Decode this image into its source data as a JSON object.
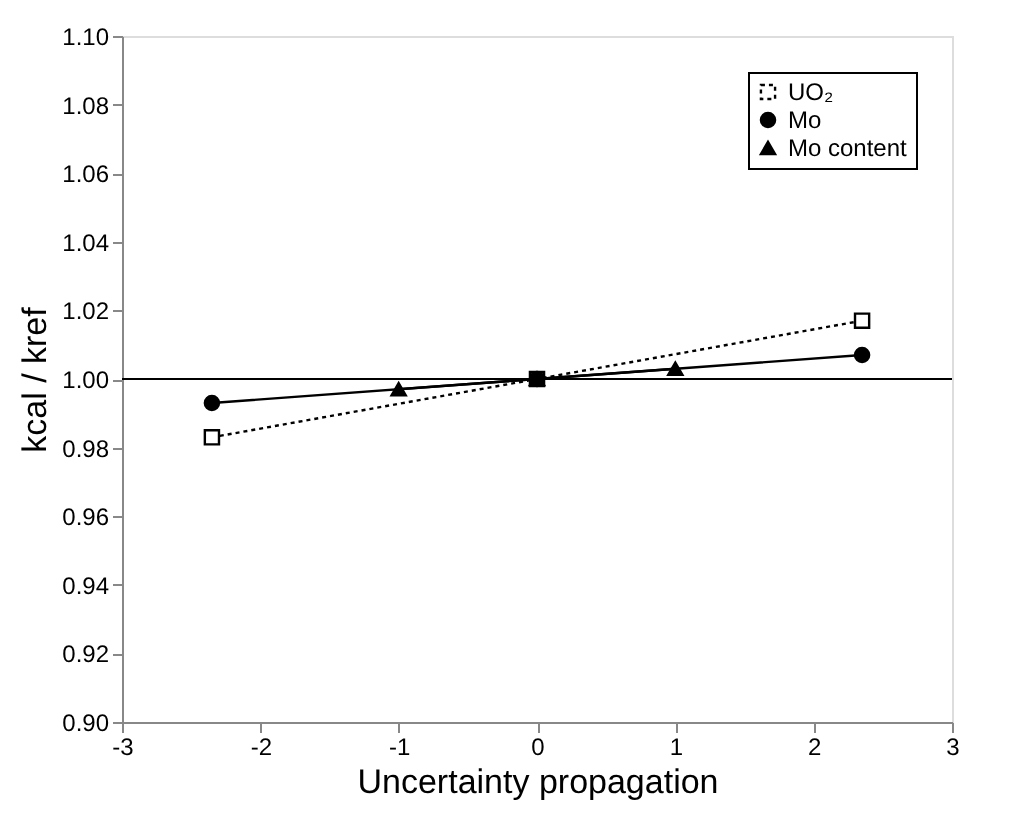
{
  "chart_data": {
    "type": "line",
    "xlabel": "Uncertainty propagation",
    "ylabel": "kcal / kref",
    "xlim": [
      -3,
      3
    ],
    "xticks": [
      {
        "value": -3,
        "label": "-3"
      },
      {
        "value": -2,
        "label": "-2"
      },
      {
        "value": -1,
        "label": "-1"
      },
      0,
      1,
      2,
      3
    ],
    "ylim": [
      0.9,
      1.1
    ],
    "yticks": [
      {
        "value": 0.9,
        "label": "0.90"
      },
      {
        "value": 0.92,
        "label": "0.92"
      },
      {
        "value": 0.94,
        "label": "0.94"
      },
      {
        "value": 0.96,
        "label": "0.96"
      },
      {
        "value": 0.98,
        "label": "0.98"
      },
      {
        "value": 1.0,
        "label": "1.00"
      },
      {
        "value": 1.02,
        "label": "1.02"
      },
      {
        "value": 1.04,
        "label": "1.04"
      },
      {
        "value": 1.06,
        "label": "1.06"
      },
      {
        "value": 1.08,
        "label": "1.08"
      },
      {
        "value": 1.1,
        "label": "1.10"
      }
    ],
    "grid": false,
    "legend": "top right",
    "series": [
      {
        "name": "UO₂",
        "color": "#000000",
        "x": [
          -2.35,
          0,
          2.35
        ],
        "values": [
          0.983,
          1.0,
          1.017
        ],
        "marker": "square",
        "line_style": "dotted"
      },
      {
        "name": "Mo",
        "color": "#000000",
        "x": [
          -2.35,
          0,
          2.35
        ],
        "values": [
          0.993,
          1.0,
          1.007
        ],
        "marker": "circle",
        "line_style": "solid"
      },
      {
        "name": "Mo content",
        "color": "#000000",
        "x": [
          -1,
          0,
          1
        ],
        "values": [
          0.997,
          1.0,
          1.003
        ],
        "marker": "triangle",
        "line_style": "solid"
      }
    ],
    "ref_lines": [
      {
        "axis": "y",
        "value": 1.0,
        "label": null,
        "color": "#000000",
        "line_style": "solid"
      }
    ]
  }
}
